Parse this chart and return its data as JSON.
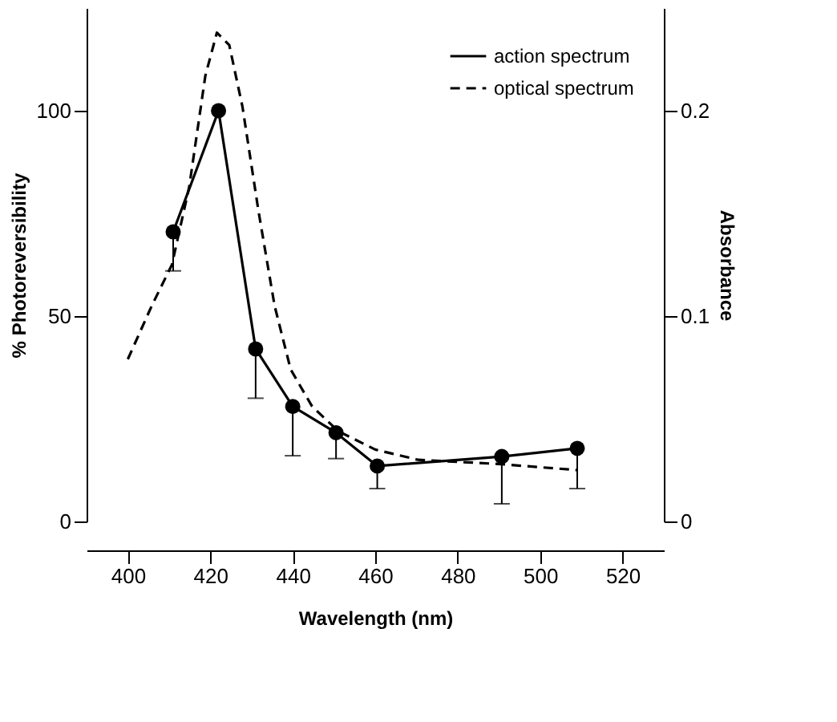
{
  "chart_data": {
    "type": "line",
    "xlabel": "Wavelength  (nm)",
    "ylabel": "% Photoreversibility",
    "y2label": "Absorbance",
    "xlim": [
      390,
      530
    ],
    "xticks": [
      400,
      420,
      440,
      460,
      480,
      500,
      520
    ],
    "ylim": [
      0,
      125
    ],
    "yticks": [
      0,
      50,
      100
    ],
    "y2lim": [
      0,
      0.25
    ],
    "y2ticks": [
      0,
      0.1,
      0.2
    ],
    "grid": false,
    "legend": "top right",
    "series": [
      {
        "name": "action spectrum",
        "color": "#000000",
        "line_style": "solid",
        "marker": "circle",
        "x": [
          411,
          422,
          431,
          440,
          450.5,
          460.5,
          490.7,
          509
        ],
        "values": [
          70.5,
          100,
          42,
          28,
          21.6,
          13.5,
          15.8,
          17.8
        ],
        "errors": [
          [
            61,
            70.5
          ],
          null,
          [
            30,
            42
          ],
          [
            16,
            28
          ],
          [
            15.3,
            21.6
          ],
          [
            8,
            13.5
          ],
          [
            4.3,
            15.8
          ],
          [
            8,
            17.8
          ]
        ]
      },
      {
        "name": "optical spectrum",
        "color": "#000000",
        "line_style": "dashed",
        "marker": "none",
        "axis": "y2",
        "x": [
          400,
          405.8,
          410.7,
          414.9,
          418.8,
          421.6,
          424.6,
          427.8,
          431.7,
          435.6,
          439.5,
          444.7,
          451,
          460,
          470.4,
          489.8,
          509
        ],
        "values": [
          0.079,
          0.105,
          0.125,
          0.163,
          0.217,
          0.238,
          0.232,
          0.202,
          0.151,
          0.105,
          0.074,
          0.056,
          0.044,
          0.035,
          0.03,
          0.028,
          0.025
        ]
      }
    ]
  }
}
